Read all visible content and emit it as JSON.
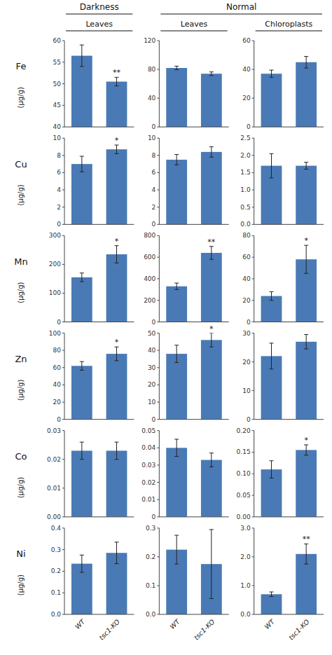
{
  "chart_data": [
    {
      "type": "bar",
      "title": "Darkness",
      "subtitle": "Leaves",
      "ylabel": "(μg/g)",
      "annotations": [
        {
          "text": "Fe"
        },
        {
          "text": "**",
          "index": 1
        }
      ],
      "categories": [
        null,
        null
      ],
      "values": [
        56.5,
        50.5
      ],
      "errors": [
        2.5,
        1.0
      ],
      "color": "#4a7ab5",
      "ylim": [
        40,
        60
      ],
      "yticks": [
        40,
        45,
        50,
        55,
        60
      ],
      "grid": false
    },
    {
      "type": "bar",
      "title": "Normal",
      "subtitle": "Leaves",
      "categories": [
        null,
        null
      ],
      "values": [
        82.0,
        74.0
      ],
      "errors": [
        2.5,
        2.5
      ],
      "color": "#4a7ab5",
      "ylim": [
        0,
        120
      ],
      "yticks": [
        0,
        40,
        80,
        120
      ],
      "grid": false
    },
    {
      "type": "bar",
      "subtitle": "Chloroplasts",
      "categories": [
        null,
        null
      ],
      "values": [
        37.0,
        45.0
      ],
      "errors": [
        2.5,
        4.0
      ],
      "color": "#4a7ab5",
      "ylim": [
        0,
        60
      ],
      "yticks": [
        0,
        20,
        40,
        60
      ],
      "grid": false
    },
    {
      "type": "bar",
      "ylabel": "(μg/g)",
      "annotations": [
        {
          "text": "Cu"
        },
        {
          "text": "*",
          "index": 1
        }
      ],
      "categories": [
        null,
        null
      ],
      "values": [
        7.0,
        8.7
      ],
      "errors": [
        0.9,
        0.5
      ],
      "color": "#4a7ab5",
      "ylim": [
        0,
        10
      ],
      "yticks": [
        0,
        2,
        4,
        6,
        8,
        10
      ],
      "grid": false
    },
    {
      "type": "bar",
      "categories": [
        null,
        null
      ],
      "values": [
        7.5,
        8.4
      ],
      "errors": [
        0.6,
        0.6
      ],
      "color": "#4a7ab5",
      "ylim": [
        0,
        10
      ],
      "yticks": [
        0,
        2,
        4,
        6,
        8,
        10
      ],
      "grid": false
    },
    {
      "type": "bar",
      "categories": [
        null,
        null
      ],
      "values": [
        1.7,
        1.7
      ],
      "errors": [
        0.35,
        0.1
      ],
      "color": "#4a7ab5",
      "ylim": [
        0,
        2.5
      ],
      "yticks": [
        {
          "value": 0,
          "label": "0.0"
        },
        0.5,
        {
          "value": 1,
          "label": "1.0"
        },
        1.5,
        {
          "value": 2,
          "label": "2.0"
        },
        2.5
      ],
      "grid": false
    },
    {
      "type": "bar",
      "ylabel": "(μg/g)",
      "annotations": [
        {
          "text": "Mn"
        },
        {
          "text": "*",
          "index": 1
        }
      ],
      "categories": [
        null,
        null
      ],
      "values": [
        155.0,
        235.0
      ],
      "errors": [
        15.0,
        30.0
      ],
      "color": "#4a7ab5",
      "ylim": [
        0,
        300
      ],
      "yticks": [
        0,
        100,
        200,
        300
      ],
      "grid": false
    },
    {
      "type": "bar",
      "annotations": [
        {
          "text": "**",
          "index": 1
        }
      ],
      "categories": [
        null,
        null
      ],
      "values": [
        330.0,
        640.0
      ],
      "errors": [
        30.0,
        60.0
      ],
      "color": "#4a7ab5",
      "ylim": [
        0,
        800
      ],
      "yticks": [
        0,
        200,
        400,
        600,
        800
      ],
      "grid": false
    },
    {
      "type": "bar",
      "annotations": [
        {
          "text": "*",
          "index": 1
        }
      ],
      "categories": [
        null,
        null
      ],
      "values": [
        24.0,
        58.0
      ],
      "errors": [
        4.0,
        13.0
      ],
      "color": "#4a7ab5",
      "ylim": [
        0,
        80
      ],
      "yticks": [
        0,
        20,
        40,
        60,
        80
      ],
      "grid": false
    },
    {
      "type": "bar",
      "ylabel": "(μg/g)",
      "annotations": [
        {
          "text": "Zn"
        },
        {
          "text": "*",
          "index": 1
        }
      ],
      "categories": [
        null,
        null
      ],
      "values": [
        62.0,
        76.0
      ],
      "errors": [
        5.0,
        8.0
      ],
      "color": "#4a7ab5",
      "ylim": [
        0,
        100
      ],
      "yticks": [
        0,
        20,
        40,
        60,
        80,
        100
      ],
      "grid": false
    },
    {
      "type": "bar",
      "annotations": [
        {
          "text": "*",
          "index": 1
        }
      ],
      "categories": [
        null,
        null
      ],
      "values": [
        38.0,
        46.0
      ],
      "errors": [
        5.0,
        4.0
      ],
      "color": "#4a7ab5",
      "ylim": [
        0,
        50
      ],
      "yticks": [
        0,
        10,
        20,
        30,
        40,
        50
      ],
      "grid": false
    },
    {
      "type": "bar",
      "categories": [
        null,
        null
      ],
      "values": [
        22.0,
        27.0
      ],
      "errors": [
        4.5,
        2.5
      ],
      "color": "#4a7ab5",
      "ylim": [
        0,
        30
      ],
      "yticks": [
        0,
        10,
        20,
        30
      ],
      "grid": false
    },
    {
      "type": "bar",
      "ylabel": "(μg/g)",
      "annotations": [
        {
          "text": "Co"
        }
      ],
      "categories": [
        null,
        null
      ],
      "values": [
        0.023,
        0.023
      ],
      "errors": [
        0.003,
        0.003
      ],
      "color": "#4a7ab5",
      "ylim": [
        0,
        0.03
      ],
      "yticks": [
        {
          "value": 0,
          "label": "0.00"
        },
        0.01,
        0.02,
        0.03
      ],
      "grid": false
    },
    {
      "type": "bar",
      "categories": [
        null,
        null
      ],
      "values": [
        0.04,
        0.033
      ],
      "errors": [
        0.005,
        0.004
      ],
      "color": "#4a7ab5",
      "ylim": [
        0,
        0.05
      ],
      "yticks": [
        0,
        0.01,
        0.02,
        0.03,
        0.04,
        0.05
      ],
      "grid": false
    },
    {
      "type": "bar",
      "annotations": [
        {
          "text": "*",
          "index": 1
        }
      ],
      "categories": [
        null,
        null
      ],
      "values": [
        0.11,
        0.155
      ],
      "errors": [
        0.02,
        0.012
      ],
      "color": "#4a7ab5",
      "ylim": [
        0,
        0.2
      ],
      "yticks": [
        {
          "value": 0,
          "label": "0.00"
        },
        0.05,
        {
          "value": 0.1,
          "label": "0.10"
        },
        0.15,
        {
          "value": 0.2,
          "label": "0.20"
        }
      ],
      "grid": false
    },
    {
      "type": "bar",
      "ylabel": "(μg/g)",
      "annotations": [
        {
          "text": "Ni"
        }
      ],
      "categories": [
        "WT",
        "tsc1-KO"
      ],
      "values": [
        0.235,
        0.285
      ],
      "errors": [
        0.04,
        0.05
      ],
      "color": "#4a7ab5",
      "ylim": [
        0,
        0.4
      ],
      "yticks": [
        {
          "value": 0,
          "label": "0.0"
        },
        0.1,
        0.2,
        0.3,
        0.4
      ],
      "grid": false
    },
    {
      "type": "bar",
      "categories": [
        "WT",
        "tsc1-KO"
      ],
      "values": [
        0.225,
        0.175
      ],
      "errors": [
        0.05,
        0.12
      ],
      "color": "#4a7ab5",
      "ylim": [
        0,
        0.3
      ],
      "yticks": [
        {
          "value": 0,
          "label": "0.0"
        },
        0.1,
        0.2,
        0.3
      ],
      "grid": false
    },
    {
      "type": "bar",
      "annotations": [
        {
          "text": "**",
          "index": 1
        }
      ],
      "categories": [
        "WT",
        "tsc1-KO"
      ],
      "values": [
        0.7,
        2.1
      ],
      "errors": [
        0.08,
        0.35
      ],
      "color": "#4a7ab5",
      "ylim": [
        0,
        3
      ],
      "yticks": [
        {
          "value": 0,
          "label": "0.0"
        },
        {
          "value": 1,
          "label": "1.0"
        },
        {
          "value": 2,
          "label": "2.0"
        },
        {
          "value": 3,
          "label": "3.0"
        }
      ],
      "grid": false
    }
  ]
}
